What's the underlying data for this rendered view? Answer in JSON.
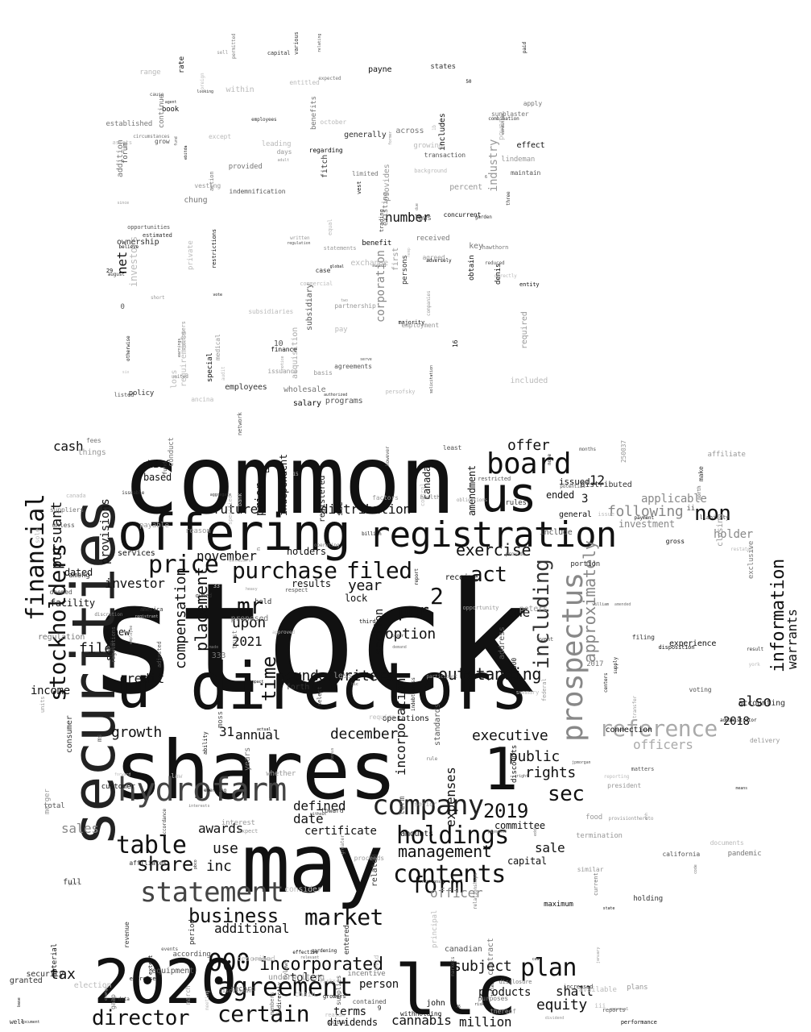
{
  "words": [
    "stock",
    "common",
    "shares",
    "securities",
    "directors",
    "may",
    "offering",
    "registration",
    "llc",
    "2020",
    "us",
    "u",
    "1",
    "prospectus",
    "financial",
    "stockholders",
    "company",
    "hydrofarm",
    "board",
    "statement",
    "price",
    "purchase",
    "filed",
    "agreement",
    "000",
    "holdings",
    "contents",
    "market",
    "business",
    "certain",
    "including",
    "director",
    "table",
    "form",
    "information",
    "plan",
    "incorporated",
    "reference",
    "act",
    "sec",
    "mr",
    "management",
    "2019",
    "approximately",
    "time",
    "per",
    "share",
    "non",
    "2",
    "exercise",
    "outstanding",
    "underwriters",
    "executive",
    "option",
    "incorporation",
    "placement",
    "compensation",
    "year",
    "public",
    "following",
    "officer",
    "officers",
    "rights",
    "offer",
    "sales",
    "warrants",
    "also",
    "2021",
    "upon",
    "december",
    "annual",
    "defined",
    "distribution",
    "additional",
    "tax",
    "equity",
    "future",
    "november",
    "date",
    "certificate",
    "sale",
    "shall",
    "million",
    "products",
    "subject",
    "cannabis",
    "dividends",
    "terms",
    "person",
    "section",
    "one",
    "committee",
    "capital",
    "expenses",
    "31",
    "credit",
    "income",
    "pursuant",
    "cash",
    "investor",
    "growth",
    "file",
    "inc",
    "use",
    "awards",
    "net",
    "number",
    "industry",
    "corporation",
    "acquisition",
    "provides",
    "requirements",
    "investors",
    "holders",
    "results",
    "lock",
    "amendment",
    "canada",
    "independent",
    "prior",
    "provisions",
    "served",
    "dated",
    "facility",
    "new",
    "services",
    "based",
    "chief",
    "ended",
    "12",
    "3",
    "2018",
    "applicable",
    "holder",
    "investment",
    "general",
    "registered",
    "see",
    "issued",
    "toler"
  ],
  "small_words": [
    "made",
    "days",
    "ability",
    "part",
    "chung",
    "result",
    "william",
    "garden",
    "rules",
    "bonus",
    "risks",
    "emerging",
    "included",
    "deemed",
    "growing",
    "entitled",
    "factors",
    "change",
    "payment",
    "16",
    "however",
    "book",
    "regulations",
    "background",
    "15",
    "permitted",
    "voting",
    "basis",
    "less",
    "delivery",
    "standards",
    "proceeds",
    "entity",
    "report",
    "economic",
    "reduced",
    "members",
    "action",
    "due",
    "extent",
    "ownership",
    "benefits",
    "reports",
    "hemp",
    "united",
    "obligations",
    "discussion",
    "received",
    "registrant",
    "disposition",
    "events",
    "benefit",
    "n",
    "500",
    "29",
    "persofsky",
    "required",
    "actual",
    "administrator",
    "aggregate",
    "equal",
    "agent",
    "adult",
    "peters",
    "moss",
    "order",
    "potential",
    "network",
    "demand",
    "majority",
    "equipment",
    "underwriting",
    "limited",
    "estimated",
    "except",
    "finance",
    "obtain",
    "paid",
    "grow",
    "two",
    "john",
    "agreed",
    "data",
    "33",
    "meeting",
    "federal",
    "termination",
    "state",
    "america",
    "fund",
    "rate",
    "expected",
    "growers",
    "gardening",
    "reporting",
    "similar",
    "maximum",
    "effect",
    "make",
    "ehh",
    "customer",
    "established",
    "hawthorn",
    "issuable",
    "sole",
    "gross",
    "material",
    "liability",
    "food",
    "directly",
    "months",
    "receive",
    "employment",
    "term",
    "years",
    "10",
    "adjusted",
    "affiliate",
    "base",
    "distributed",
    "regarding",
    "rule",
    "restrictions",
    "three",
    "york",
    "principal",
    "forth",
    "employees",
    "regulation",
    "trading",
    "payments",
    "vote",
    "experience",
    "percent",
    "greater",
    "assets",
    "documents",
    "initial",
    "fees",
    "restated",
    "relating",
    "consumer",
    "available",
    "wholesale",
    "january",
    "companies",
    "interest",
    "risk",
    "agreements",
    "units",
    "relevant",
    "special",
    "former",
    "election",
    "dividend",
    "medical",
    "discounts",
    "without",
    "contract",
    "affiliates",
    "transfer",
    "accordance",
    "authorized",
    "ebitda",
    "october",
    "holding",
    "related",
    "2017",
    "otherwise",
    "existing",
    "denis",
    "law",
    "current",
    "total",
    "333",
    "amended",
    "merger",
    "looking",
    "purposes",
    "iii",
    "short",
    "serve",
    "adversely",
    "combination",
    "capital",
    "fitch",
    "award",
    "range",
    "revenue",
    "audit",
    "canadian",
    "titled",
    "cea",
    "pbco",
    "specified",
    "held",
    "right",
    "first",
    "event",
    "since",
    "document",
    "granted",
    "ltd",
    "delaware",
    "owned",
    "case",
    "bylaws",
    "described",
    "restricted",
    "statements",
    "notice",
    "address",
    "indebtedness",
    "select",
    "9",
    "hic",
    "bank",
    "salary",
    "proposed",
    "ms",
    "foreign",
    "suppliers",
    "250037",
    "sunblaster",
    "eddi",
    "third",
    "entered",
    "trust",
    "august",
    "things",
    "solicitation",
    "subsidiary",
    "amounts",
    "exercised",
    "california",
    "key",
    "senior",
    "earnings",
    "payable",
    "states",
    "toward",
    "subsidiaries",
    "closing",
    "global",
    "billion",
    "security",
    "opportunity",
    "operations",
    "addition",
    "least",
    "indirectly",
    "lindeman",
    "chain",
    "within",
    "issue",
    "according",
    "circumstances",
    "conditions",
    "plans",
    "transaction",
    "private",
    "withholding",
    "leading",
    "1b",
    "fund",
    "ii",
    "march",
    "provide",
    "consider",
    "include",
    "forum",
    "persons",
    "believe",
    "respect",
    "exclusive",
    "expect",
    "generally",
    "customers",
    "various",
    "note",
    "heavy",
    "health",
    "thereof",
    "whether",
    "control",
    "laws",
    "sell",
    "effective",
    "payne",
    "continue",
    "employees",
    "regulation",
    "6",
    "0",
    "loss",
    "vest",
    "markets",
    "includes",
    "vesting",
    "period",
    "record",
    "portion",
    "centers",
    "matters",
    "conduct",
    "ancina",
    "interests",
    "pay",
    "incentive",
    "supplies",
    "filing",
    "connection",
    "jpmorgan",
    "listed",
    "approval",
    "increased",
    "employee",
    "six",
    "power",
    "gaap",
    "full",
    "code",
    "cause",
    "pandemic",
    "supply",
    "maintain",
    "president",
    "relationships",
    "8",
    "participant",
    "approved",
    "written",
    "reason",
    "means",
    "opportunities",
    "provisionthereto",
    "programs",
    "covid",
    "provided",
    "apply",
    "unless",
    "26",
    "operating",
    "issuance",
    "canada",
    "across",
    "summary",
    "indemnification",
    "north",
    "50",
    "require",
    "policy",
    "accounting",
    "contained",
    "forward",
    "well",
    "partnership",
    "discretion",
    "condition",
    "commercial",
    "performance",
    "concurrent",
    "impact",
    "disclosure",
    "exchange",
    "among",
    "reason"
  ]
}
